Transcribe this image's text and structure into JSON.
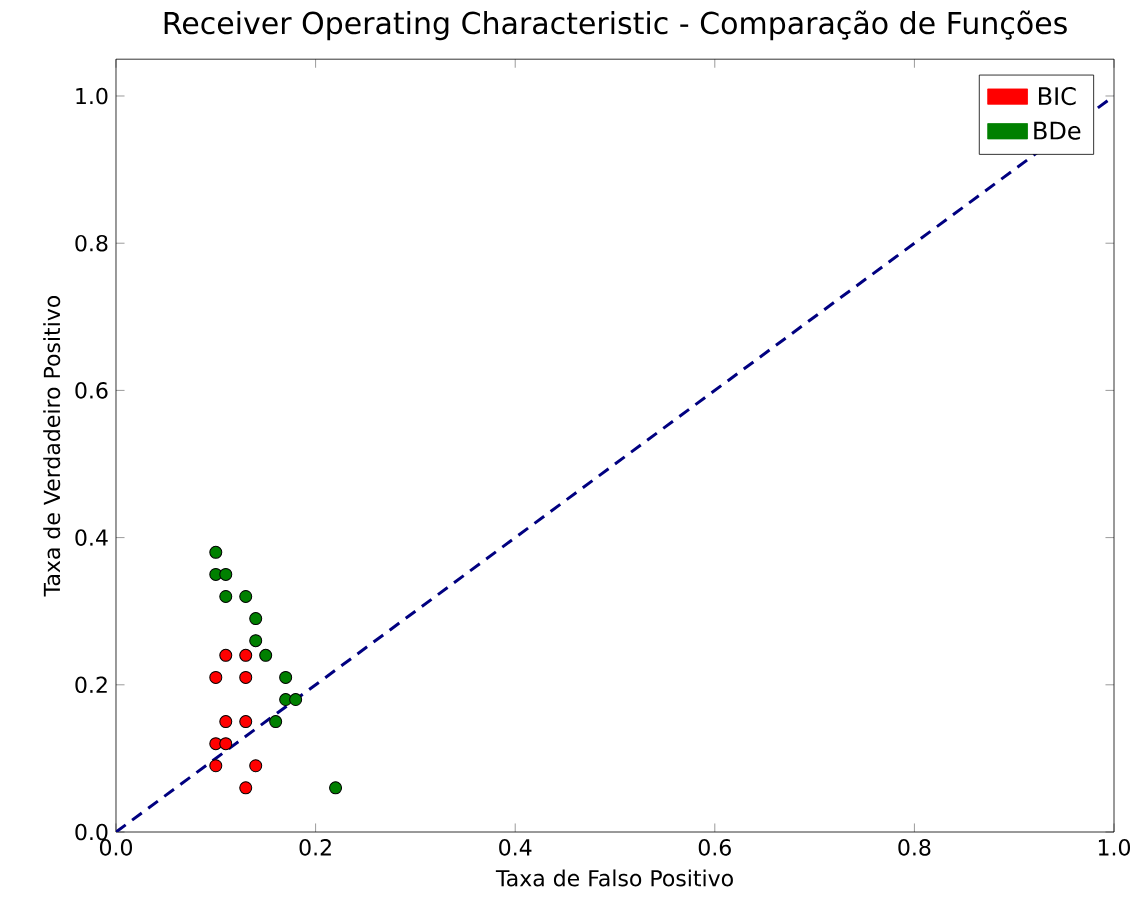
{
  "chart_data": {
    "type": "scatter",
    "title": "Receiver Operating Characteristic - Comparação de Funções",
    "xlabel": "Taxa de Falso Positivo",
    "ylabel": "Taxa de Verdadeiro Positivo",
    "xlim": [
      0,
      1
    ],
    "ylim": [
      0,
      1.05
    ],
    "xticks": [
      {
        "value": 0,
        "label": "0.0"
      },
      {
        "value": 0.2,
        "label": "0.2"
      },
      {
        "value": 0.4,
        "label": "0.4"
      },
      {
        "value": 0.6,
        "label": "0.6"
      },
      {
        "value": 0.8,
        "label": "0.8"
      },
      {
        "value": 1,
        "label": "1.0"
      }
    ],
    "yticks": [
      {
        "value": 0,
        "label": "0.0"
      },
      {
        "value": 0.2,
        "label": "0.2"
      },
      {
        "value": 0.4,
        "label": "0.4"
      },
      {
        "value": 0.6,
        "label": "0.6"
      },
      {
        "value": 0.8,
        "label": "0.8"
      },
      {
        "value": 1,
        "label": "1.0"
      }
    ],
    "grid": false,
    "legend": "top right",
    "series": [
      {
        "name": "BIC",
        "color": "#ff0000",
        "marker": "circle",
        "x": [
          0.11,
          0.13,
          0.1,
          0.13,
          0.11,
          0.13,
          0.1,
          0.11,
          0.1,
          0.14,
          0.13
        ],
        "values": [
          0.24,
          0.24,
          0.21,
          0.21,
          0.15,
          0.15,
          0.12,
          0.12,
          0.09,
          0.09,
          0.06
        ]
      },
      {
        "name": "BDe",
        "color": "#008000",
        "marker": "circle",
        "x": [
          0.1,
          0.1,
          0.11,
          0.11,
          0.13,
          0.14,
          0.14,
          0.15,
          0.17,
          0.17,
          0.18,
          0.16,
          0.22
        ],
        "values": [
          0.38,
          0.35,
          0.35,
          0.32,
          0.32,
          0.29,
          0.26,
          0.24,
          0.21,
          0.18,
          0.18,
          0.15,
          0.06
        ]
      },
      {
        "type": "line",
        "color": "#000080",
        "line_style": "dashed",
        "marker": "none",
        "x": [
          0,
          1
        ],
        "values": [
          0,
          1
        ]
      }
    ]
  }
}
